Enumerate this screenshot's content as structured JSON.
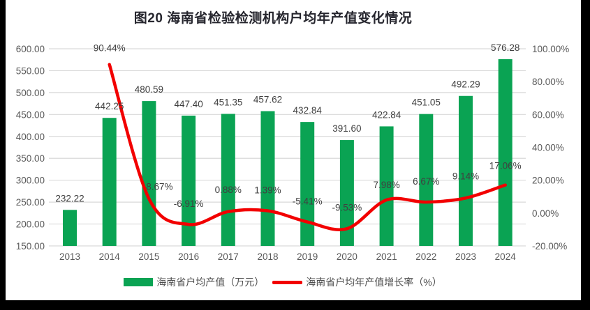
{
  "chart_title": "图20  海南省检验检测机构户均年产值变化情况",
  "chart_data": {
    "type": "combo-bar-line",
    "title": "图20  海南省检验检测机构户均年产值变化情况",
    "categories": [
      "2013",
      "2014",
      "2015",
      "2016",
      "2017",
      "2018",
      "2019",
      "2020",
      "2021",
      "2022",
      "2023",
      "2024"
    ],
    "series": [
      {
        "name": "海南省户均产值（万元）",
        "type": "bar",
        "axis": "left",
        "color": "#0aa353",
        "values": [
          232.22,
          442.25,
          480.59,
          447.4,
          451.35,
          457.62,
          432.84,
          391.6,
          422.84,
          451.05,
          492.29,
          576.28
        ]
      },
      {
        "name": "海南省户均年产值增长率（%）",
        "type": "line",
        "axis": "right",
        "color": "#f20000",
        "values": [
          null,
          90.44,
          8.67,
          -6.91,
          0.88,
          1.39,
          -5.41,
          -9.53,
          7.98,
          6.67,
          9.14,
          17.06
        ]
      }
    ],
    "left_axis": {
      "min": 150,
      "max": 600,
      "step": 50,
      "tick_labels": [
        "600.00",
        "550.00",
        "500.00",
        "450.00",
        "400.00",
        "350.00",
        "300.00",
        "250.00",
        "200.00",
        "150.00"
      ]
    },
    "right_axis": {
      "min": -20,
      "max": 100,
      "step": 20,
      "tick_labels": [
        "100.00%",
        "80.00%",
        "60.00%",
        "40.00%",
        "20.00%",
        "0.00%",
        "-20.00%"
      ]
    },
    "grid": true,
    "legend_position": "bottom",
    "colors": {
      "grid": "#d9d9d9",
      "axis_text": "#595959",
      "data_label": "#404040",
      "title": "#26262e"
    }
  }
}
